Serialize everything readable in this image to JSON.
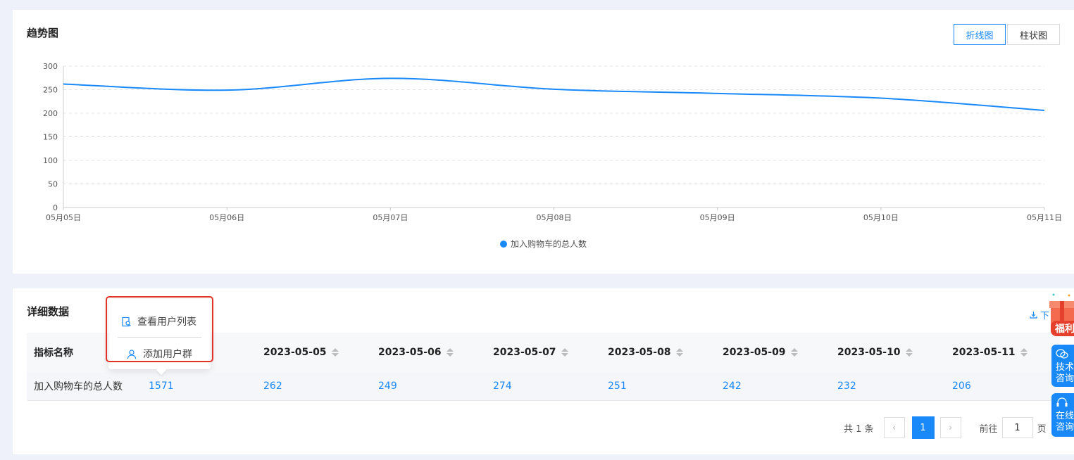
{
  "trend": {
    "title": "趋势图",
    "toggle_line": "折线图",
    "toggle_bar": "柱状图"
  },
  "chart_data": {
    "type": "line",
    "categories": [
      "05月05日",
      "05月06日",
      "05月07日",
      "05月08日",
      "05月09日",
      "05月10日",
      "05月11日"
    ],
    "series": [
      {
        "name": "加入购物车的总人数",
        "values": [
          262,
          249,
          274,
          251,
          242,
          232,
          206
        ]
      }
    ],
    "yticks": [
      "0",
      "50",
      "100",
      "150",
      "200",
      "250",
      "300"
    ],
    "ylim": [
      0,
      300
    ],
    "grid": true,
    "legend_position": "bottom",
    "color": "#1989fa"
  },
  "detail": {
    "title": "详细数据",
    "download_label": "下",
    "columns": [
      "指标名称",
      "",
      "2023-05-05",
      "2023-05-06",
      "2023-05-07",
      "2023-05-08",
      "2023-05-09",
      "2023-05-10",
      "2023-05-11"
    ],
    "row": [
      "加入购物车的总人数",
      "1571",
      "262",
      "249",
      "274",
      "251",
      "242",
      "232",
      "206"
    ]
  },
  "popover": {
    "item1": "查看用户列表",
    "item2": "添加用户群"
  },
  "pagination": {
    "total": "共 1 条",
    "current": "1",
    "goto_label": "前往",
    "goto_value": "1",
    "page_suffix": "页"
  },
  "side": {
    "gift": "福利",
    "tech": "技术咨询",
    "online": "在线咨询"
  }
}
